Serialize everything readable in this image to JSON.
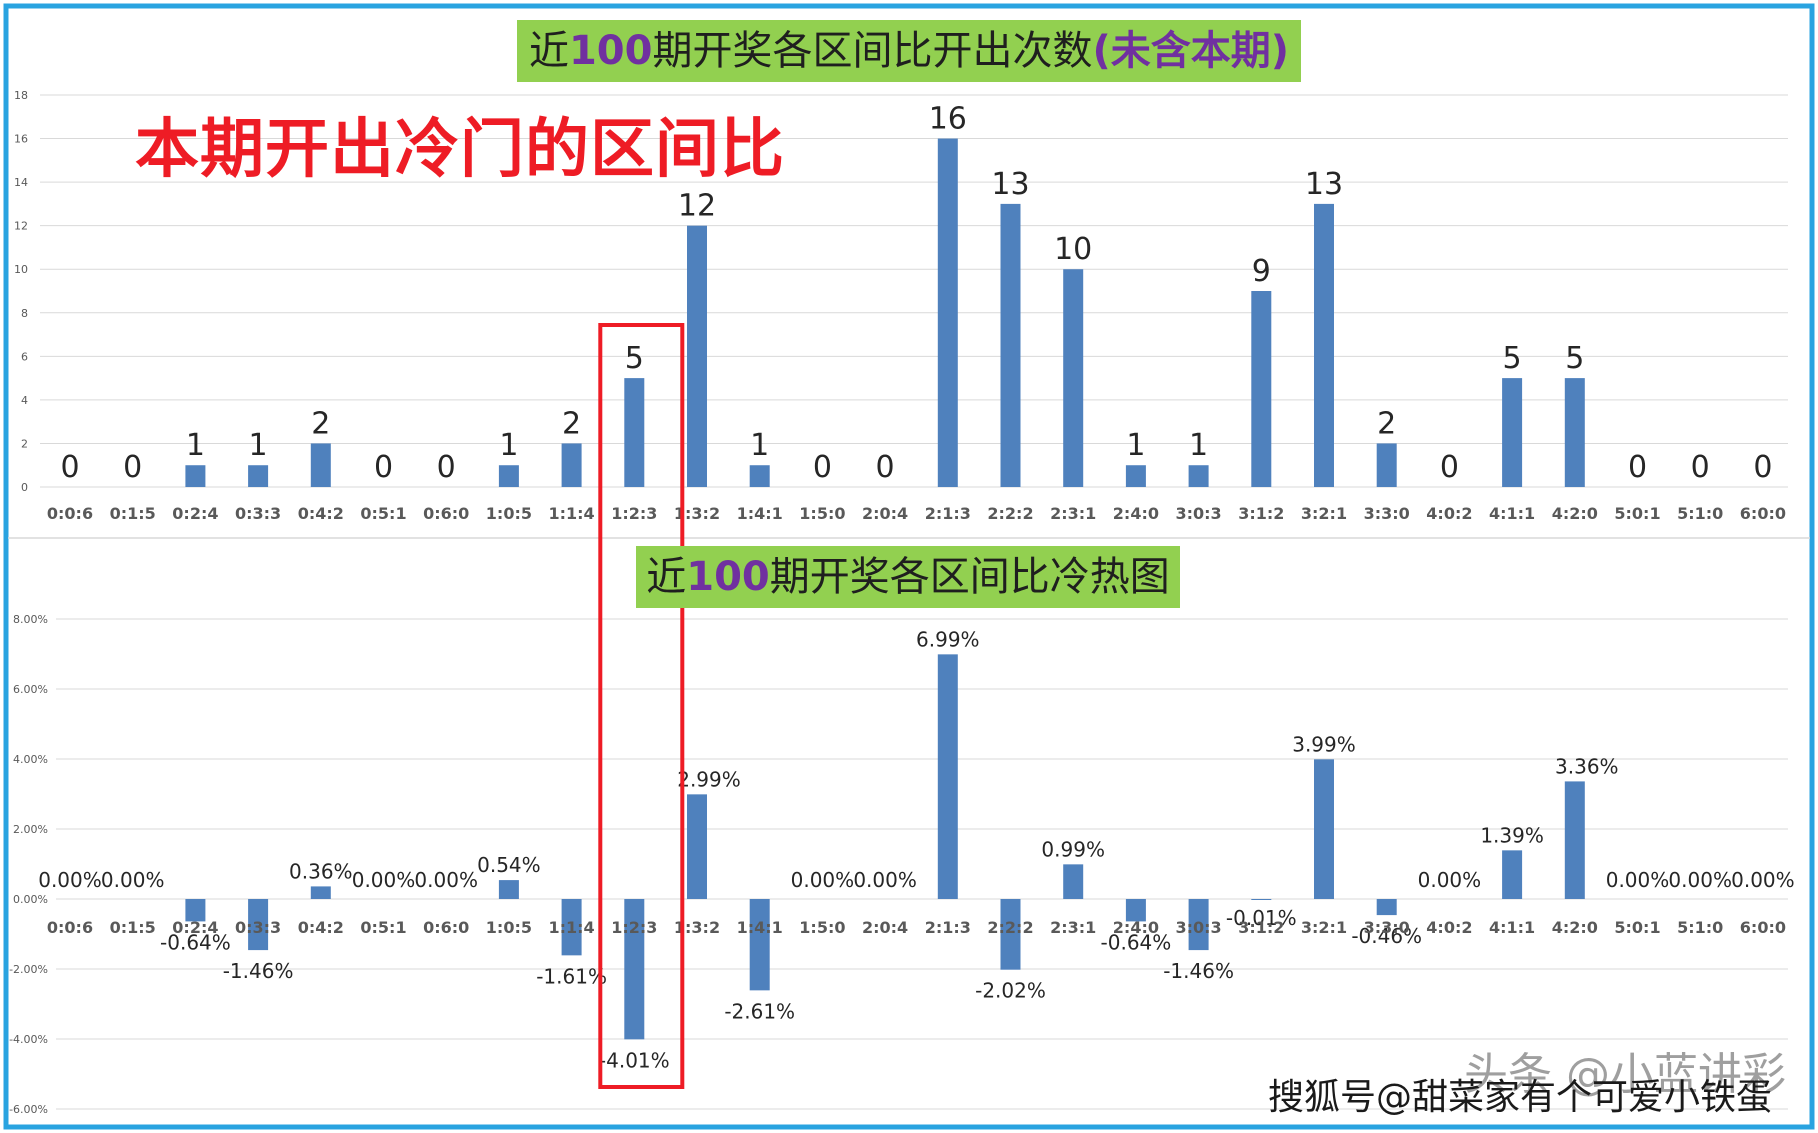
{
  "titles": {
    "chart1_pre": "近",
    "chart1_num": "100",
    "chart1_post": "期开奖各区间比开出次数",
    "chart1_paren": "(未含本期)",
    "chart2_pre": "近",
    "chart2_num": "100",
    "chart2_post": "期开奖各区间比冷热图"
  },
  "annotation": "本期开出冷门的区间比",
  "watermark": "搜狐号@甜菜家有个可爱小铁蛋",
  "watermark_shadow": "头条 @小蓝讲彩",
  "colors": {
    "bar": "#4f81bd",
    "frame": "#29a3e0",
    "highlight": "#ee1c25",
    "title_bg": "#92d050",
    "title_num": "#7030a0",
    "grid": "#d9d9d9"
  },
  "highlight_category": "1:2:3",
  "chart_data": [
    {
      "type": "bar",
      "categories": [
        "0:0:6",
        "0:1:5",
        "0:2:4",
        "0:3:3",
        "0:4:2",
        "0:5:1",
        "0:6:0",
        "1:0:5",
        "1:1:4",
        "1:2:3",
        "1:3:2",
        "1:4:1",
        "1:5:0",
        "2:0:4",
        "2:1:3",
        "2:2:2",
        "2:3:1",
        "2:4:0",
        "3:0:3",
        "3:1:2",
        "3:2:1",
        "3:3:0",
        "4:0:2",
        "4:1:1",
        "4:2:0",
        "5:0:1",
        "5:1:0",
        "6:0:0"
      ],
      "values": [
        0,
        0,
        1,
        1,
        2,
        0,
        0,
        1,
        2,
        5,
        12,
        1,
        0,
        0,
        16,
        13,
        10,
        1,
        1,
        9,
        13,
        2,
        0,
        5,
        5,
        0,
        0,
        0
      ],
      "data_labels": [
        "0",
        "0",
        "1",
        "1",
        "2",
        "0",
        "0",
        "1",
        "2",
        "5",
        "12",
        "1",
        "0",
        "0",
        "16",
        "13",
        "10",
        "1",
        "1",
        "9",
        "13",
        "2",
        "0",
        "5",
        "5",
        "0",
        "0",
        "0"
      ],
      "ylim": [
        0,
        18
      ],
      "yticks": [
        "0",
        "2",
        "4",
        "6",
        "8",
        "10",
        "12",
        "14",
        "16",
        "18"
      ],
      "grid": true,
      "legend": "none"
    },
    {
      "type": "bar",
      "categories": [
        "0:0:6",
        "0:1:5",
        "0:2:4",
        "0:3:3",
        "0:4:2",
        "0:5:1",
        "0:6:0",
        "1:0:5",
        "1:1:4",
        "1:2:3",
        "1:3:2",
        "1:4:1",
        "1:5:0",
        "2:0:4",
        "2:1:3",
        "2:2:2",
        "2:3:1",
        "2:4:0",
        "3:0:3",
        "3:1:2",
        "3:2:1",
        "3:3:0",
        "4:0:2",
        "4:1:1",
        "4:2:0",
        "5:0:1",
        "5:1:0",
        "6:0:0"
      ],
      "values": [
        0.0,
        0.0,
        -0.64,
        -1.46,
        0.36,
        0.0,
        0.0,
        0.54,
        -1.61,
        -4.01,
        2.99,
        -2.61,
        0.0,
        0.0,
        6.99,
        -2.02,
        0.99,
        -0.64,
        -1.46,
        -0.01,
        3.99,
        -0.46,
        0.0,
        1.39,
        3.36,
        0.0,
        0.0,
        0.0
      ],
      "data_labels": [
        "0.00%",
        "0.00%",
        "-0.64%",
        "-1.46%",
        "0.36%",
        "0.00%",
        "0.00%",
        "0.54%",
        "-1.61%",
        "-4.01%",
        "2.99%",
        "-2.61%",
        "0.00%",
        "0.00%",
        "6.99%",
        "-2.02%",
        "0.99%",
        "-0.64%",
        "-1.46%",
        "-0.01%",
        "3.99%",
        "-0.46%",
        "0.00%",
        "1.39%",
        "3.36%",
        "0.00%",
        "0.00%",
        "0.00%"
      ],
      "ylim": [
        -6,
        8
      ],
      "yticks": [
        "-6.00%",
        "-4.00%",
        "-2.00%",
        "0.00%",
        "2.00%",
        "4.00%",
        "6.00%",
        "8.00%"
      ],
      "grid": true,
      "legend": "none"
    }
  ]
}
